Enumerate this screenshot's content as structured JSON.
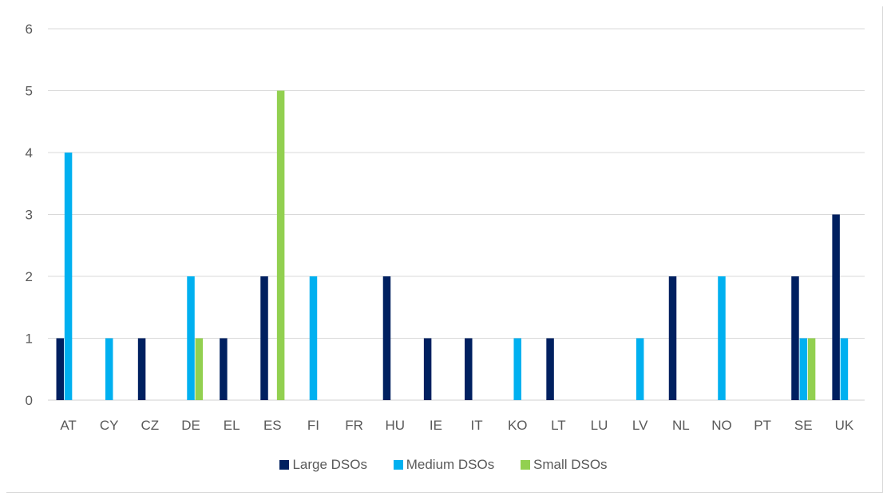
{
  "chart_data": {
    "type": "bar",
    "title": "",
    "xlabel": "",
    "ylabel": "",
    "ylim": [
      0,
      6
    ],
    "yticks": [
      0,
      1,
      2,
      3,
      4,
      5,
      6
    ],
    "grid": true,
    "legend_position": "bottom",
    "categories": [
      "AT",
      "CY",
      "CZ",
      "DE",
      "EL",
      "ES",
      "FI",
      "FR",
      "HU",
      "IE",
      "IT",
      "KO",
      "LT",
      "LU",
      "LV",
      "NL",
      "NO",
      "PT",
      "SE",
      "UK"
    ],
    "series": [
      {
        "name": "Large DSOs",
        "color": "#002060",
        "values": [
          1,
          0,
          1,
          0,
          1,
          2,
          0,
          0,
          2,
          1,
          1,
          0,
          1,
          0,
          0,
          2,
          0,
          0,
          2,
          3
        ]
      },
      {
        "name": "Medium DSOs",
        "color": "#00B0F0",
        "values": [
          4,
          1,
          0,
          2,
          0,
          0,
          2,
          0,
          0,
          0,
          0,
          1,
          0,
          0,
          1,
          0,
          2,
          0,
          1,
          1
        ]
      },
      {
        "name": "Small DSOs",
        "color": "#92D050",
        "values": [
          0,
          0,
          0,
          1,
          0,
          5,
          0,
          0,
          0,
          0,
          0,
          0,
          0,
          0,
          0,
          0,
          0,
          0,
          1,
          0
        ]
      }
    ]
  }
}
